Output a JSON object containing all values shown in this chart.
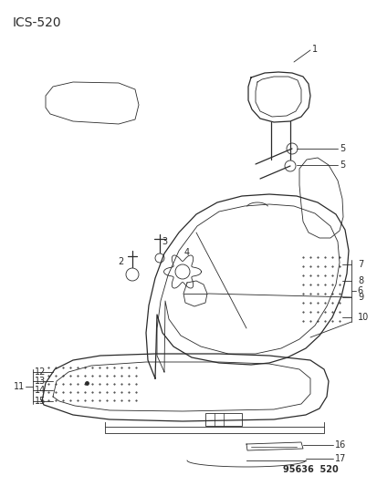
{
  "title": "ICS-520",
  "footer": "95636  520",
  "bg_color": "#ffffff",
  "line_color": "#2a2a2a",
  "title_fontsize": 10,
  "label_fontsize": 7,
  "footer_fontsize": 7
}
